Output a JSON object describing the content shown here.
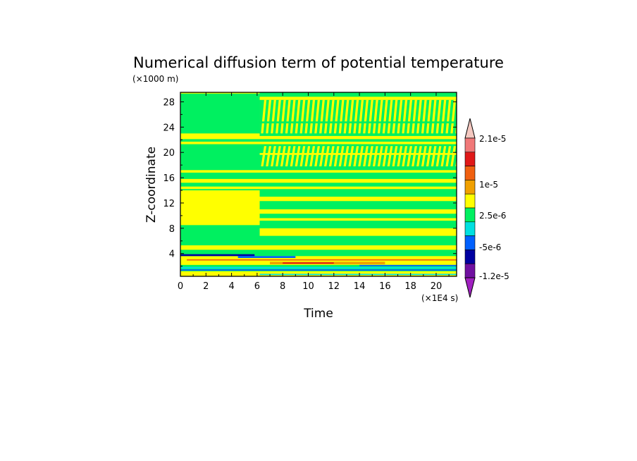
{
  "chart_data": {
    "type": "heatmap",
    "title": "Numerical diffusion term of potential temperature",
    "xlabel": "Time",
    "ylabel": "Z-coordinate",
    "x_unit": "(×1E4 s)",
    "y_unit": "(×1000 m)",
    "xlim": [
      0,
      21.6
    ],
    "ylim": [
      0.4,
      29.5
    ],
    "x_ticks": [
      "0",
      "2",
      "4",
      "6",
      "8",
      "10",
      "12",
      "14",
      "16",
      "18",
      "20"
    ],
    "y_ticks": [
      "4",
      "8",
      "12",
      "16",
      "20",
      "24",
      "28"
    ],
    "grid": false,
    "colorbar": {
      "placement": "right",
      "labels": [
        "2.1e-5",
        "1e-5",
        "2.5e-6",
        "-5e-6",
        "-1.2e-5"
      ],
      "colors": [
        "#f4c8c0",
        "#f07878",
        "#e01818",
        "#f06010",
        "#f0a000",
        "#ffff00",
        "#00f060",
        "#00e0e0",
        "#0060ff",
        "#0000a0",
        "#7010a0",
        "#a020c0"
      ]
    },
    "regions": [
      {
        "x": [
          0,
          21.6
        ],
        "y": [
          0.4,
          29.5
        ],
        "level": "2.5e-6 to 5e-6",
        "note": "background"
      },
      {
        "x": [
          0,
          6.2
        ],
        "y": [
          22.5,
          29.5
        ],
        "level": "0 to 2.5e-6"
      },
      {
        "x": [
          6.2,
          21.6
        ],
        "y": [
          22.5,
          28.5
        ],
        "level": "striped 0 to 2.5e-6 / 2.5e-6 to 5e-6"
      },
      {
        "x": [
          6.2,
          21.6
        ],
        "y": [
          17.5,
          21.5
        ],
        "level": "striped 0 to 2.5e-6 / 2.5e-6 to 5e-6"
      },
      {
        "x": [
          0,
          6.2
        ],
        "y": [
          8.5,
          14
        ],
        "level": "2.5e-6 to 5e-6"
      },
      {
        "x": [
          0,
          21.6
        ],
        "y": [
          1.5,
          3.8
        ],
        "level": "mixed -1.2e-5 to 1e-5"
      }
    ]
  }
}
